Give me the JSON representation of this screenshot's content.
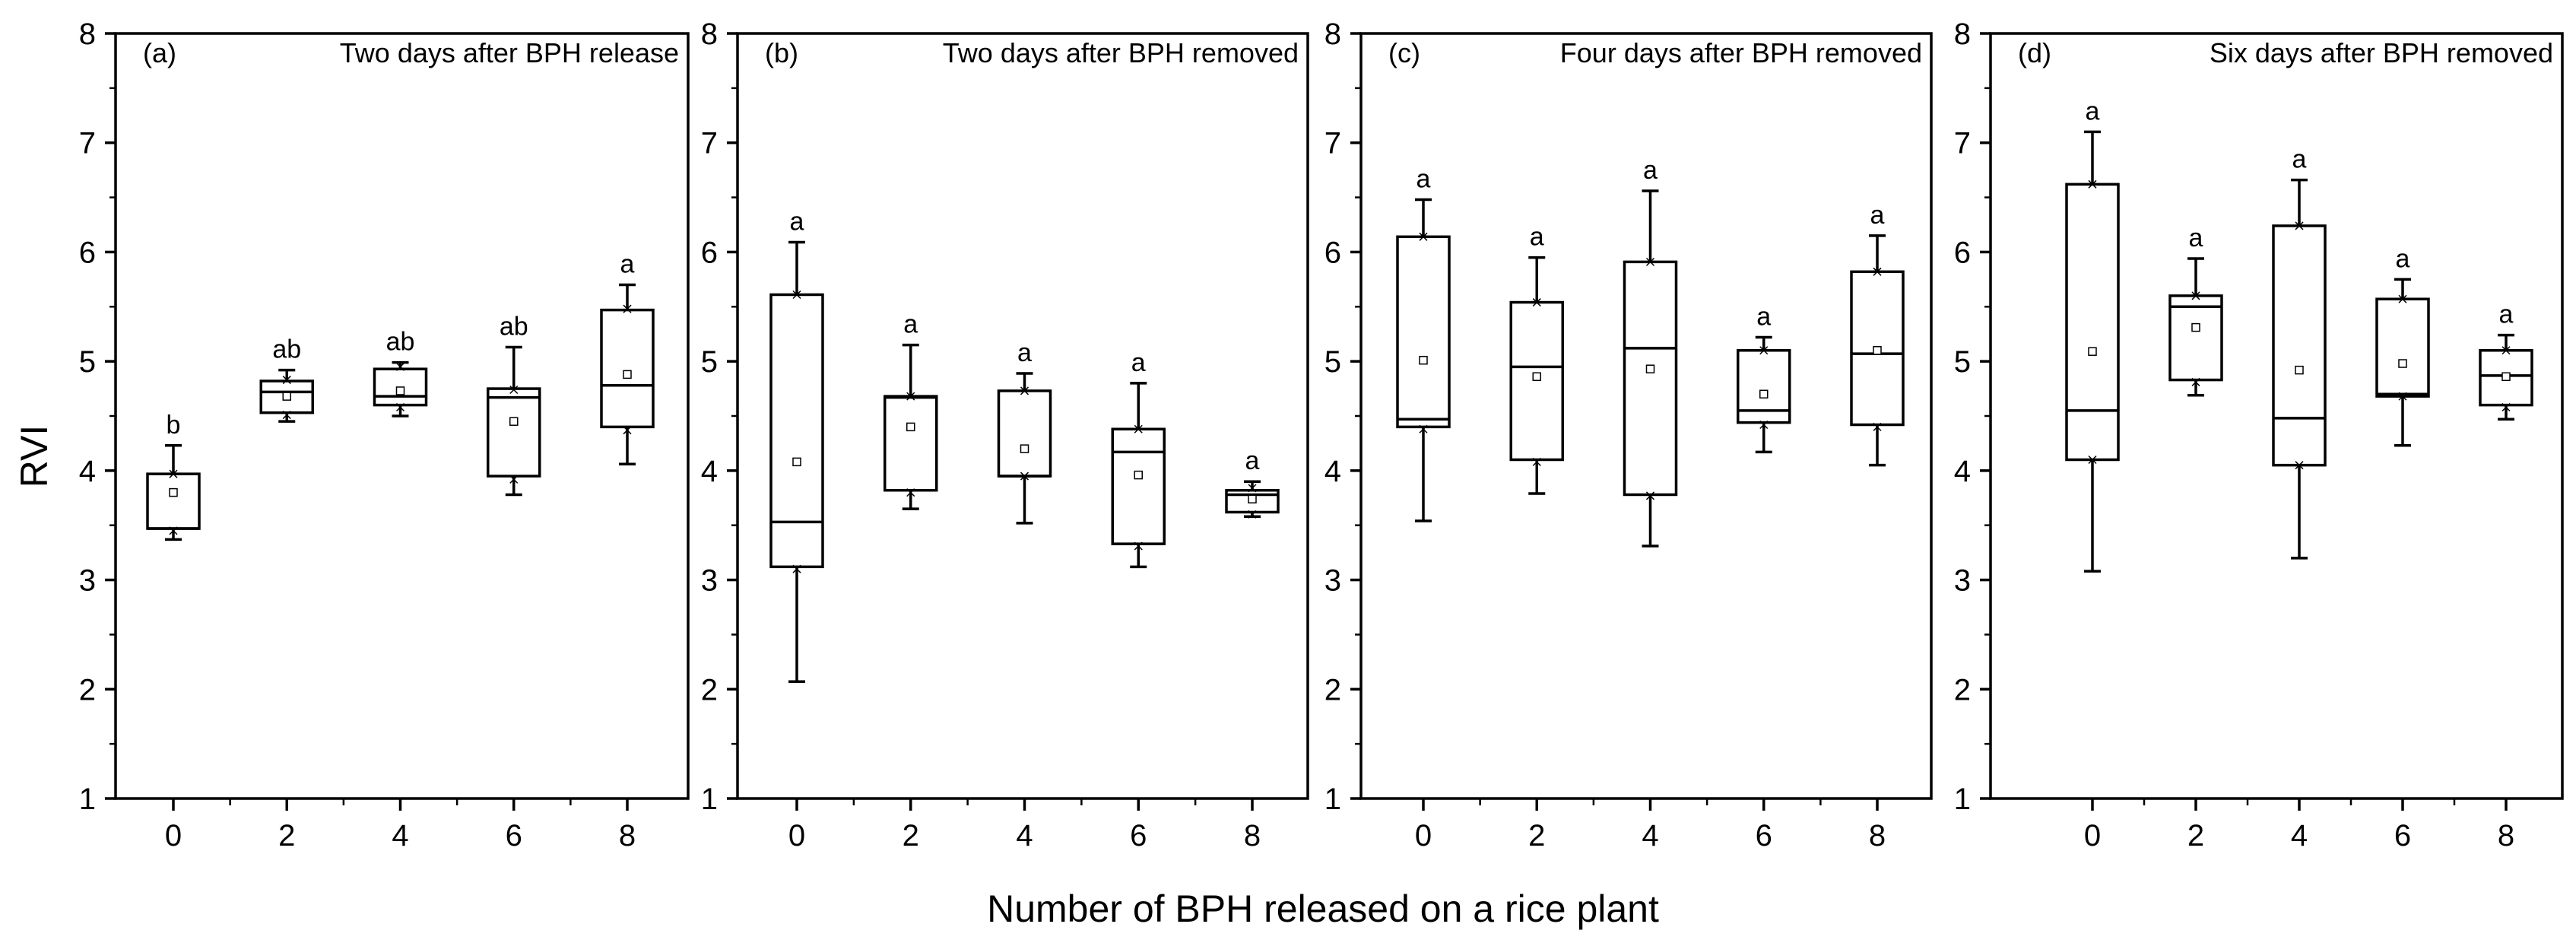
{
  "chart_data": {
    "type": "box",
    "ylabel": "RVI",
    "xlabel": "Number of BPH released on a rice plant",
    "ylim": [
      1,
      8
    ],
    "yticks": [
      1,
      2,
      3,
      4,
      5,
      6,
      7,
      8
    ],
    "categories": [
      "0",
      "2",
      "4",
      "6",
      "8"
    ],
    "panels": [
      {
        "label": "(a)",
        "title": "Two days after BPH release",
        "boxes": [
          {
            "x": "0",
            "min": 3.37,
            "p1": 3.45,
            "q1": 3.47,
            "median": 3.47,
            "mean": 3.8,
            "q3": 3.97,
            "p99": 3.97,
            "max": 4.23,
            "letter": "b"
          },
          {
            "x": "2",
            "min": 4.45,
            "p1": 4.51,
            "q1": 4.53,
            "median": 4.72,
            "mean": 4.68,
            "q3": 4.82,
            "p99": 4.83,
            "max": 4.92,
            "letter": "ab"
          },
          {
            "x": "4",
            "min": 4.5,
            "p1": 4.58,
            "q1": 4.6,
            "median": 4.68,
            "mean": 4.73,
            "q3": 4.93,
            "p99": 4.95,
            "max": 4.99,
            "letter": "ab"
          },
          {
            "x": "6",
            "min": 3.78,
            "p1": 3.92,
            "q1": 3.95,
            "median": 4.67,
            "mean": 4.45,
            "q3": 4.75,
            "p99": 4.74,
            "max": 5.13,
            "letter": "ab"
          },
          {
            "x": "8",
            "min": 4.06,
            "p1": 4.37,
            "q1": 4.4,
            "median": 4.78,
            "mean": 4.88,
            "q3": 5.47,
            "p99": 5.48,
            "max": 5.7,
            "letter": "a"
          }
        ]
      },
      {
        "label": "(b)",
        "title": "Two days after BPH removed",
        "boxes": [
          {
            "x": "0",
            "min": 2.07,
            "p1": 3.1,
            "q1": 3.12,
            "median": 3.53,
            "mean": 4.08,
            "q3": 5.61,
            "p99": 5.61,
            "max": 6.09,
            "letter": "a"
          },
          {
            "x": "2",
            "min": 3.65,
            "p1": 3.8,
            "q1": 3.82,
            "median": 4.67,
            "mean": 4.4,
            "q3": 4.68,
            "p99": 4.68,
            "max": 5.15,
            "letter": "a"
          },
          {
            "x": "4",
            "min": 3.52,
            "p1": 3.95,
            "q1": 3.95,
            "median": 3.95,
            "mean": 4.2,
            "q3": 4.73,
            "p99": 4.73,
            "max": 4.89,
            "letter": "a"
          },
          {
            "x": "6",
            "min": 3.12,
            "p1": 3.31,
            "q1": 3.33,
            "median": 4.17,
            "mean": 3.96,
            "q3": 4.38,
            "p99": 4.38,
            "max": 4.8,
            "letter": "a"
          },
          {
            "x": "8",
            "min": 3.58,
            "p1": 3.6,
            "q1": 3.62,
            "median": 3.78,
            "mean": 3.74,
            "q3": 3.82,
            "p99": 3.84,
            "max": 3.9,
            "letter": "a"
          }
        ]
      },
      {
        "label": "(c)",
        "title": "Four days after BPH removed",
        "boxes": [
          {
            "x": "0",
            "min": 3.54,
            "p1": 4.38,
            "q1": 4.4,
            "median": 4.47,
            "mean": 5.01,
            "q3": 6.14,
            "p99": 6.14,
            "max": 6.48,
            "letter": "a"
          },
          {
            "x": "2",
            "min": 3.79,
            "p1": 4.08,
            "q1": 4.1,
            "median": 4.95,
            "mean": 4.86,
            "q3": 5.54,
            "p99": 5.54,
            "max": 5.95,
            "letter": "a"
          },
          {
            "x": "4",
            "min": 3.31,
            "p1": 3.77,
            "q1": 3.78,
            "median": 5.12,
            "mean": 4.93,
            "q3": 5.91,
            "p99": 5.91,
            "max": 6.56,
            "letter": "a"
          },
          {
            "x": "6",
            "min": 4.17,
            "p1": 4.42,
            "q1": 4.44,
            "median": 4.55,
            "mean": 4.7,
            "q3": 5.1,
            "p99": 5.1,
            "max": 5.22,
            "letter": "a"
          },
          {
            "x": "8",
            "min": 4.05,
            "p1": 4.4,
            "q1": 4.42,
            "median": 5.07,
            "mean": 5.1,
            "q3": 5.82,
            "p99": 5.82,
            "max": 6.15,
            "letter": "a"
          }
        ]
      },
      {
        "label": "(d)",
        "title": "Six days after BPH removed",
        "boxes": [
          {
            "x": "0",
            "min": 3.08,
            "p1": 4.1,
            "q1": 4.1,
            "median": 4.55,
            "mean": 5.09,
            "q3": 6.62,
            "p99": 6.62,
            "max": 7.1,
            "letter": "a"
          },
          {
            "x": "2",
            "min": 4.69,
            "p1": 4.81,
            "q1": 4.83,
            "median": 5.5,
            "mean": 5.31,
            "q3": 5.6,
            "p99": 5.6,
            "max": 5.94,
            "letter": "a"
          },
          {
            "x": "4",
            "min": 3.2,
            "p1": 4.05,
            "q1": 4.05,
            "median": 4.48,
            "mean": 4.92,
            "q3": 6.24,
            "p99": 6.24,
            "max": 6.66,
            "letter": "a"
          },
          {
            "x": "6",
            "min": 4.23,
            "p1": 4.68,
            "q1": 4.68,
            "median": 4.7,
            "mean": 4.98,
            "q3": 5.57,
            "p99": 5.57,
            "max": 5.75,
            "letter": "a"
          },
          {
            "x": "8",
            "min": 4.47,
            "p1": 4.58,
            "q1": 4.6,
            "median": 4.87,
            "mean": 4.86,
            "q3": 5.1,
            "p99": 5.1,
            "max": 5.24,
            "letter": "a"
          }
        ]
      }
    ]
  }
}
